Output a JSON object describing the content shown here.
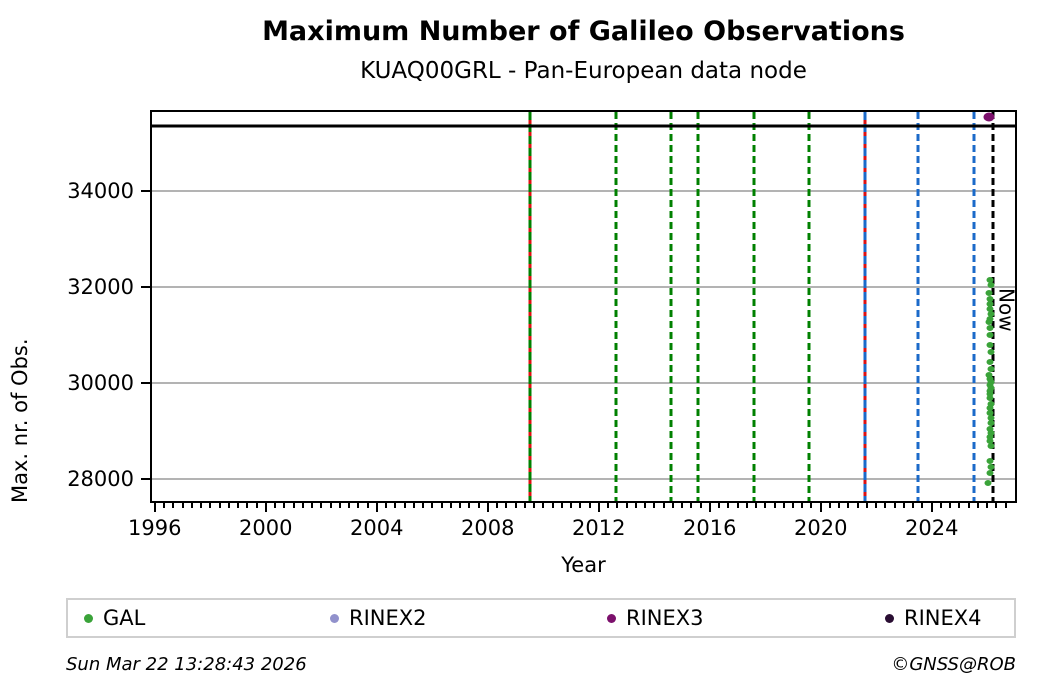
{
  "header": {
    "title": "Maximum Number of Galileo Observations",
    "subtitle": "KUAQ00GRL - Pan-European data node"
  },
  "footer": {
    "timestamp": "Sun Mar 22 13:28:43 2026",
    "copyright": "©GNSS@ROB"
  },
  "colors": {
    "green_line": "#008000",
    "red_line": "#dd1111",
    "blue_line": "#1b6ac9",
    "black_line": "#000000",
    "grid": "#b3b3b3",
    "gal_point": "#3aa339",
    "rinex2": "#9191cc",
    "rinex3": "#7c106c",
    "rinex4": "#2a0e33"
  },
  "chart_data": {
    "type": "scatter",
    "title": "Maximum Number of Galileo Observations",
    "subtitle": "KUAQ00GRL - Pan-European data node",
    "xlabel": "Year",
    "ylabel": "Max. nr. of Obs.",
    "xlim": [
      1995.9,
      2027.0
    ],
    "ylim": [
      27540,
      35640
    ],
    "grid": "horizontal-major-only",
    "x_ticks": [
      {
        "v": 1996,
        "label": "1996"
      },
      {
        "v": 2000,
        "label": "2000"
      },
      {
        "v": 2004,
        "label": "2004"
      },
      {
        "v": 2008,
        "label": "2008"
      },
      {
        "v": 2012,
        "label": "2012"
      },
      {
        "v": 2016,
        "label": "2016"
      },
      {
        "v": 2020,
        "label": "2020"
      },
      {
        "v": 2024,
        "label": "2024"
      }
    ],
    "x_minor_step": 0.33333,
    "y_ticks": [
      {
        "v": 28000,
        "label": "28000"
      },
      {
        "v": 30000,
        "label": "30000"
      },
      {
        "v": 32000,
        "label": "32000"
      },
      {
        "v": 34000,
        "label": "34000"
      }
    ],
    "hlines": [
      {
        "y": 35350,
        "style": "black-solid",
        "name": "max-obs-line"
      }
    ],
    "vlines": [
      {
        "x": 2009.54,
        "style": "green-red",
        "name": "event-line-green-red"
      },
      {
        "x": 2012.61,
        "style": "green",
        "name": "event-line-green"
      },
      {
        "x": 2014.59,
        "style": "green",
        "name": "event-line-green"
      },
      {
        "x": 2015.56,
        "style": "green",
        "name": "event-line-green"
      },
      {
        "x": 2017.58,
        "style": "green",
        "name": "event-line-green"
      },
      {
        "x": 2019.56,
        "style": "green",
        "name": "event-line-green"
      },
      {
        "x": 2021.59,
        "style": "blue-red",
        "name": "event-line-blue-red"
      },
      {
        "x": 2023.49,
        "style": "blue",
        "name": "event-line-blue"
      },
      {
        "x": 2025.54,
        "style": "blue",
        "name": "event-line-blue"
      },
      {
        "x": 2026.19,
        "style": "black",
        "name": "now-line",
        "label": "Now",
        "label_top_value": 31980
      }
    ],
    "series": [
      {
        "name": "GAL",
        "color": "#3aa339",
        "points": [
          [
            2026.1,
            32150
          ],
          [
            2026.12,
            32040
          ],
          [
            2026.08,
            31870
          ],
          [
            2026.1,
            31750
          ],
          [
            2026.11,
            31650
          ],
          [
            2026.09,
            31530
          ],
          [
            2026.12,
            31440
          ],
          [
            2026.1,
            31340
          ],
          [
            2026.08,
            31270
          ],
          [
            2026.11,
            31150
          ],
          [
            2026.1,
            31000
          ],
          [
            2026.09,
            30780
          ],
          [
            2026.12,
            30650
          ],
          [
            2026.1,
            30430
          ],
          [
            2026.13,
            30290
          ],
          [
            2026.08,
            30160
          ],
          [
            2026.11,
            30090
          ],
          [
            2026.14,
            30020
          ],
          [
            2026.1,
            29960
          ],
          [
            2026.12,
            29900
          ],
          [
            2026.09,
            29840
          ],
          [
            2026.11,
            29760
          ],
          [
            2026.1,
            29680
          ],
          [
            2026.13,
            29570
          ],
          [
            2026.11,
            29480
          ],
          [
            2026.09,
            29380
          ],
          [
            2026.12,
            29270
          ],
          [
            2026.14,
            29170
          ],
          [
            2026.1,
            29040
          ],
          [
            2026.12,
            28960
          ],
          [
            2026.09,
            28880
          ],
          [
            2026.11,
            28790
          ],
          [
            2026.13,
            28690
          ],
          [
            2026.1,
            28380
          ],
          [
            2026.12,
            28250
          ],
          [
            2026.09,
            28120
          ],
          [
            2026.02,
            27910
          ]
        ]
      },
      {
        "name": "RINEX2",
        "color": "#9191cc",
        "points": []
      },
      {
        "name": "RINEX3",
        "color": "#7c106c",
        "points": [
          [
            2026.08,
            35530
          ]
        ]
      },
      {
        "name": "RINEX4",
        "color": "#2a0e33",
        "points": []
      }
    ],
    "legend": {
      "position": "bottom",
      "entries": [
        "GAL",
        "RINEX2",
        "RINEX3",
        "RINEX4"
      ]
    }
  }
}
